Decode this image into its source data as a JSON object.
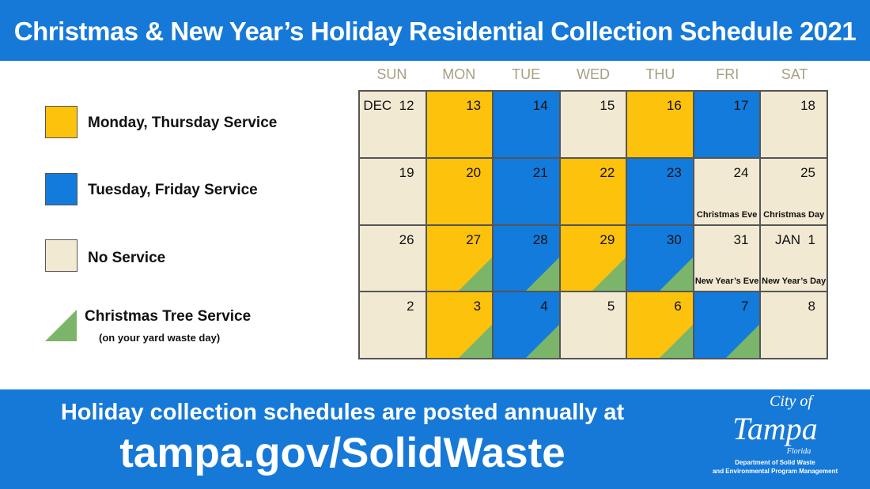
{
  "title": "Christmas & New Year’s Holiday Residential Collection Schedule 2021",
  "legend": [
    {
      "label": "Monday, Thursday Service",
      "color": "#fdc20c"
    },
    {
      "label": "Tuesday, Friday Service",
      "color": "#127bdc"
    },
    {
      "label": "No Service",
      "color": "#f2e9d3"
    },
    {
      "label": "Christmas Tree Service",
      "sub": "(on your yard waste day)",
      "color": "#7bb56a"
    }
  ],
  "weekdays": [
    "SUN",
    "MON",
    "TUE",
    "WED",
    "THU",
    "FRI",
    "SAT"
  ],
  "cells": [
    {
      "day": "DEC  12",
      "type": "n"
    },
    {
      "day": "13",
      "type": "y"
    },
    {
      "day": "14",
      "type": "b"
    },
    {
      "day": "15",
      "type": "n"
    },
    {
      "day": "16",
      "type": "y"
    },
    {
      "day": "17",
      "type": "b"
    },
    {
      "day": "18",
      "type": "n"
    },
    {
      "day": "19",
      "type": "n"
    },
    {
      "day": "20",
      "type": "y"
    },
    {
      "day": "21",
      "type": "b"
    },
    {
      "day": "22",
      "type": "y"
    },
    {
      "day": "23",
      "type": "b"
    },
    {
      "day": "24",
      "type": "n",
      "holiday": "Christmas Eve"
    },
    {
      "day": "25",
      "type": "n",
      "holiday": "Christmas Day"
    },
    {
      "day": "26",
      "type": "n"
    },
    {
      "day": "27",
      "type": "y",
      "tree": true
    },
    {
      "day": "28",
      "type": "b",
      "tree": true
    },
    {
      "day": "29",
      "type": "y",
      "tree": true
    },
    {
      "day": "30",
      "type": "b",
      "tree": true
    },
    {
      "day": "31",
      "type": "n",
      "holiday": "New Year’s Eve"
    },
    {
      "day": "JAN  1",
      "type": "n",
      "holiday": "New Year’s Day"
    },
    {
      "day": "2",
      "type": "n"
    },
    {
      "day": "3",
      "type": "y",
      "tree": true
    },
    {
      "day": "4",
      "type": "b",
      "tree": true
    },
    {
      "day": "5",
      "type": "n"
    },
    {
      "day": "6",
      "type": "y",
      "tree": true
    },
    {
      "day": "7",
      "type": "b",
      "tree": true
    },
    {
      "day": "8",
      "type": "n"
    }
  ],
  "footer": {
    "line1": "Holiday collection schedules are posted annually at",
    "line2": "tampa.gov/SolidWaste"
  },
  "logo": {
    "city": "City of",
    "name": "Tampa",
    "state": "Florida",
    "dept1": "Department of Solid Waste",
    "dept2": "and Environmental Program Management"
  }
}
